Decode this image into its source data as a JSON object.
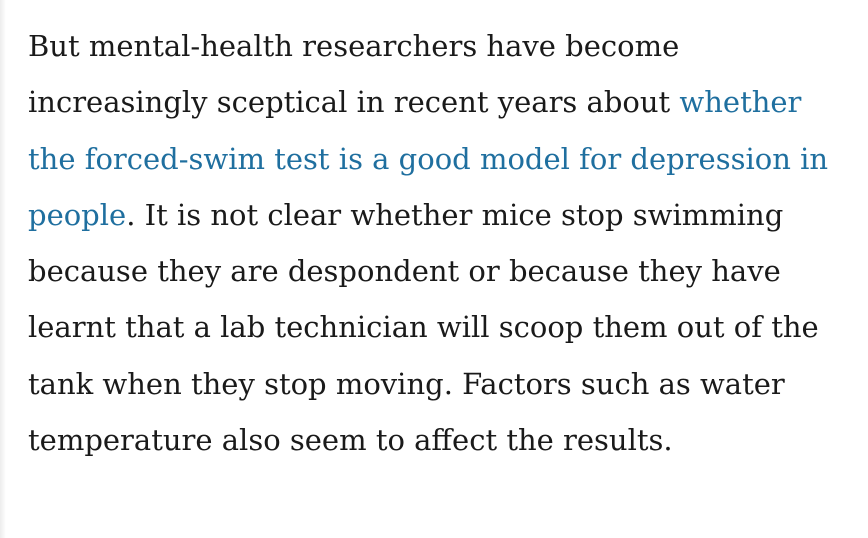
{
  "article": {
    "paragraph": {
      "before_link": "But mental-health researchers have become increasingly sceptical in recent years about ",
      "link_text": "whether the forced-swim test is a good model for depression in people",
      "after_link": ". It is not clear whether mice stop swimming because they are despondent or because they have learnt that a lab technician will scoop them out of the tank when they stop moving. Factors such as water temperature also seem to affect the results."
    },
    "colors": {
      "text": "#1a1a1a",
      "link": "#1f6f9f",
      "background": "#ffffff"
    }
  }
}
